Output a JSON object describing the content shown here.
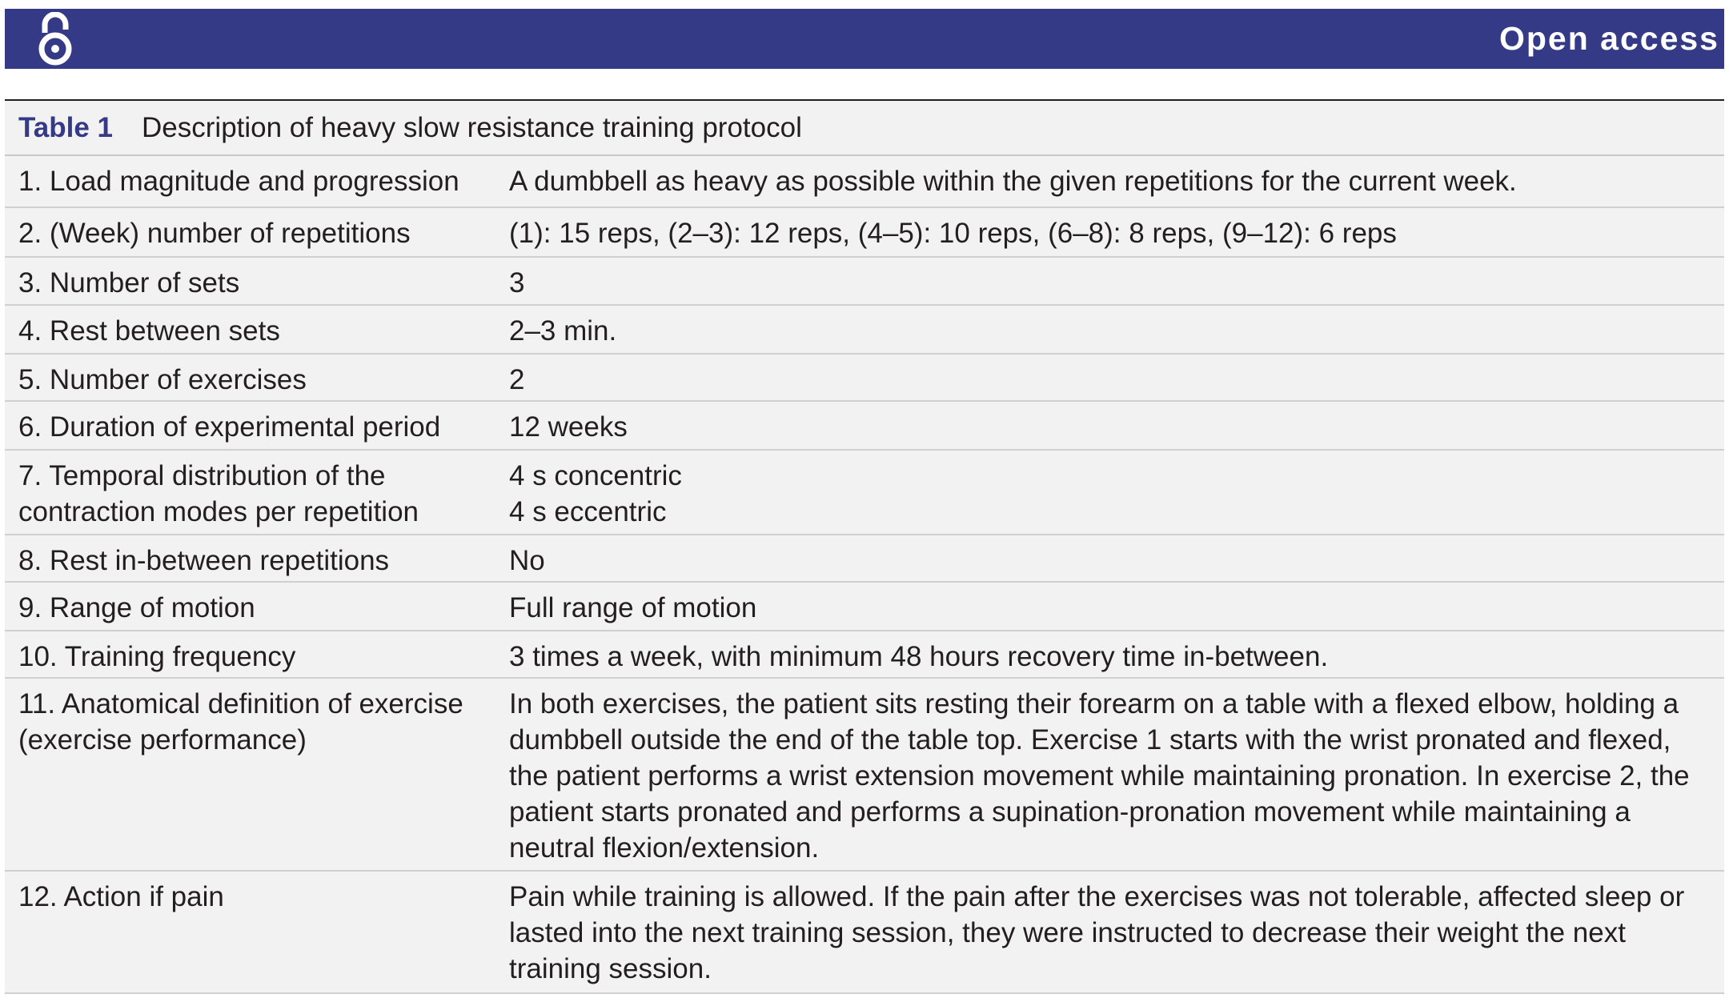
{
  "banner": {
    "label": "Open access",
    "icon": "open-access-lock-icon",
    "color": "#353a87"
  },
  "table": {
    "number": "Table 1",
    "title": "Description of heavy slow resistance training protocol",
    "rows": [
      {
        "param": "1. Load magnitude and progression",
        "value": "A dumbbell as heavy as possible within the given repetitions for the current week."
      },
      {
        "param": "2. (Week) number of repetitions",
        "value": "(1): 15 reps, (2–3): 12 reps, (4–5): 10 reps, (6–8): 8 reps, (9–12): 6 reps"
      },
      {
        "param": "3. Number of sets",
        "value": "3"
      },
      {
        "param": "4. Rest between sets",
        "value": "2–3 min."
      },
      {
        "param": "5. Number of exercises",
        "value": "2"
      },
      {
        "param": "6. Duration of experimental period",
        "value": "12 weeks"
      },
      {
        "param": "7. Temporal distribution of the contraction modes per repetition",
        "value": "4 s concentric\n4 s eccentric"
      },
      {
        "param": "8. Rest in-between repetitions",
        "value": "No"
      },
      {
        "param": "9. Range of motion",
        "value": "Full range of motion"
      },
      {
        "param": "10. Training frequency",
        "value": "3 times a week, with minimum 48 hours recovery time in-between."
      },
      {
        "param": "11. Anatomical definition of exercise (exercise performance)",
        "value": "In both exercises, the patient sits resting their forearm on a table with a flexed elbow, holding a dumbbell outside the end of the table top. Exercise 1 starts with the wrist pronated and flexed, the patient performs a wrist extension movement while maintaining pronation. In exercise 2, the patient starts pronated and performs a supination-pronation movement while maintaining a neutral flexion/extension."
      },
      {
        "param": "12. Action if pain",
        "value": "Pain while training is allowed. If the pain after the exercises was not tolerable, affected sleep or lasted into the next training session, they were instructed to decrease their weight the next training session."
      }
    ]
  }
}
